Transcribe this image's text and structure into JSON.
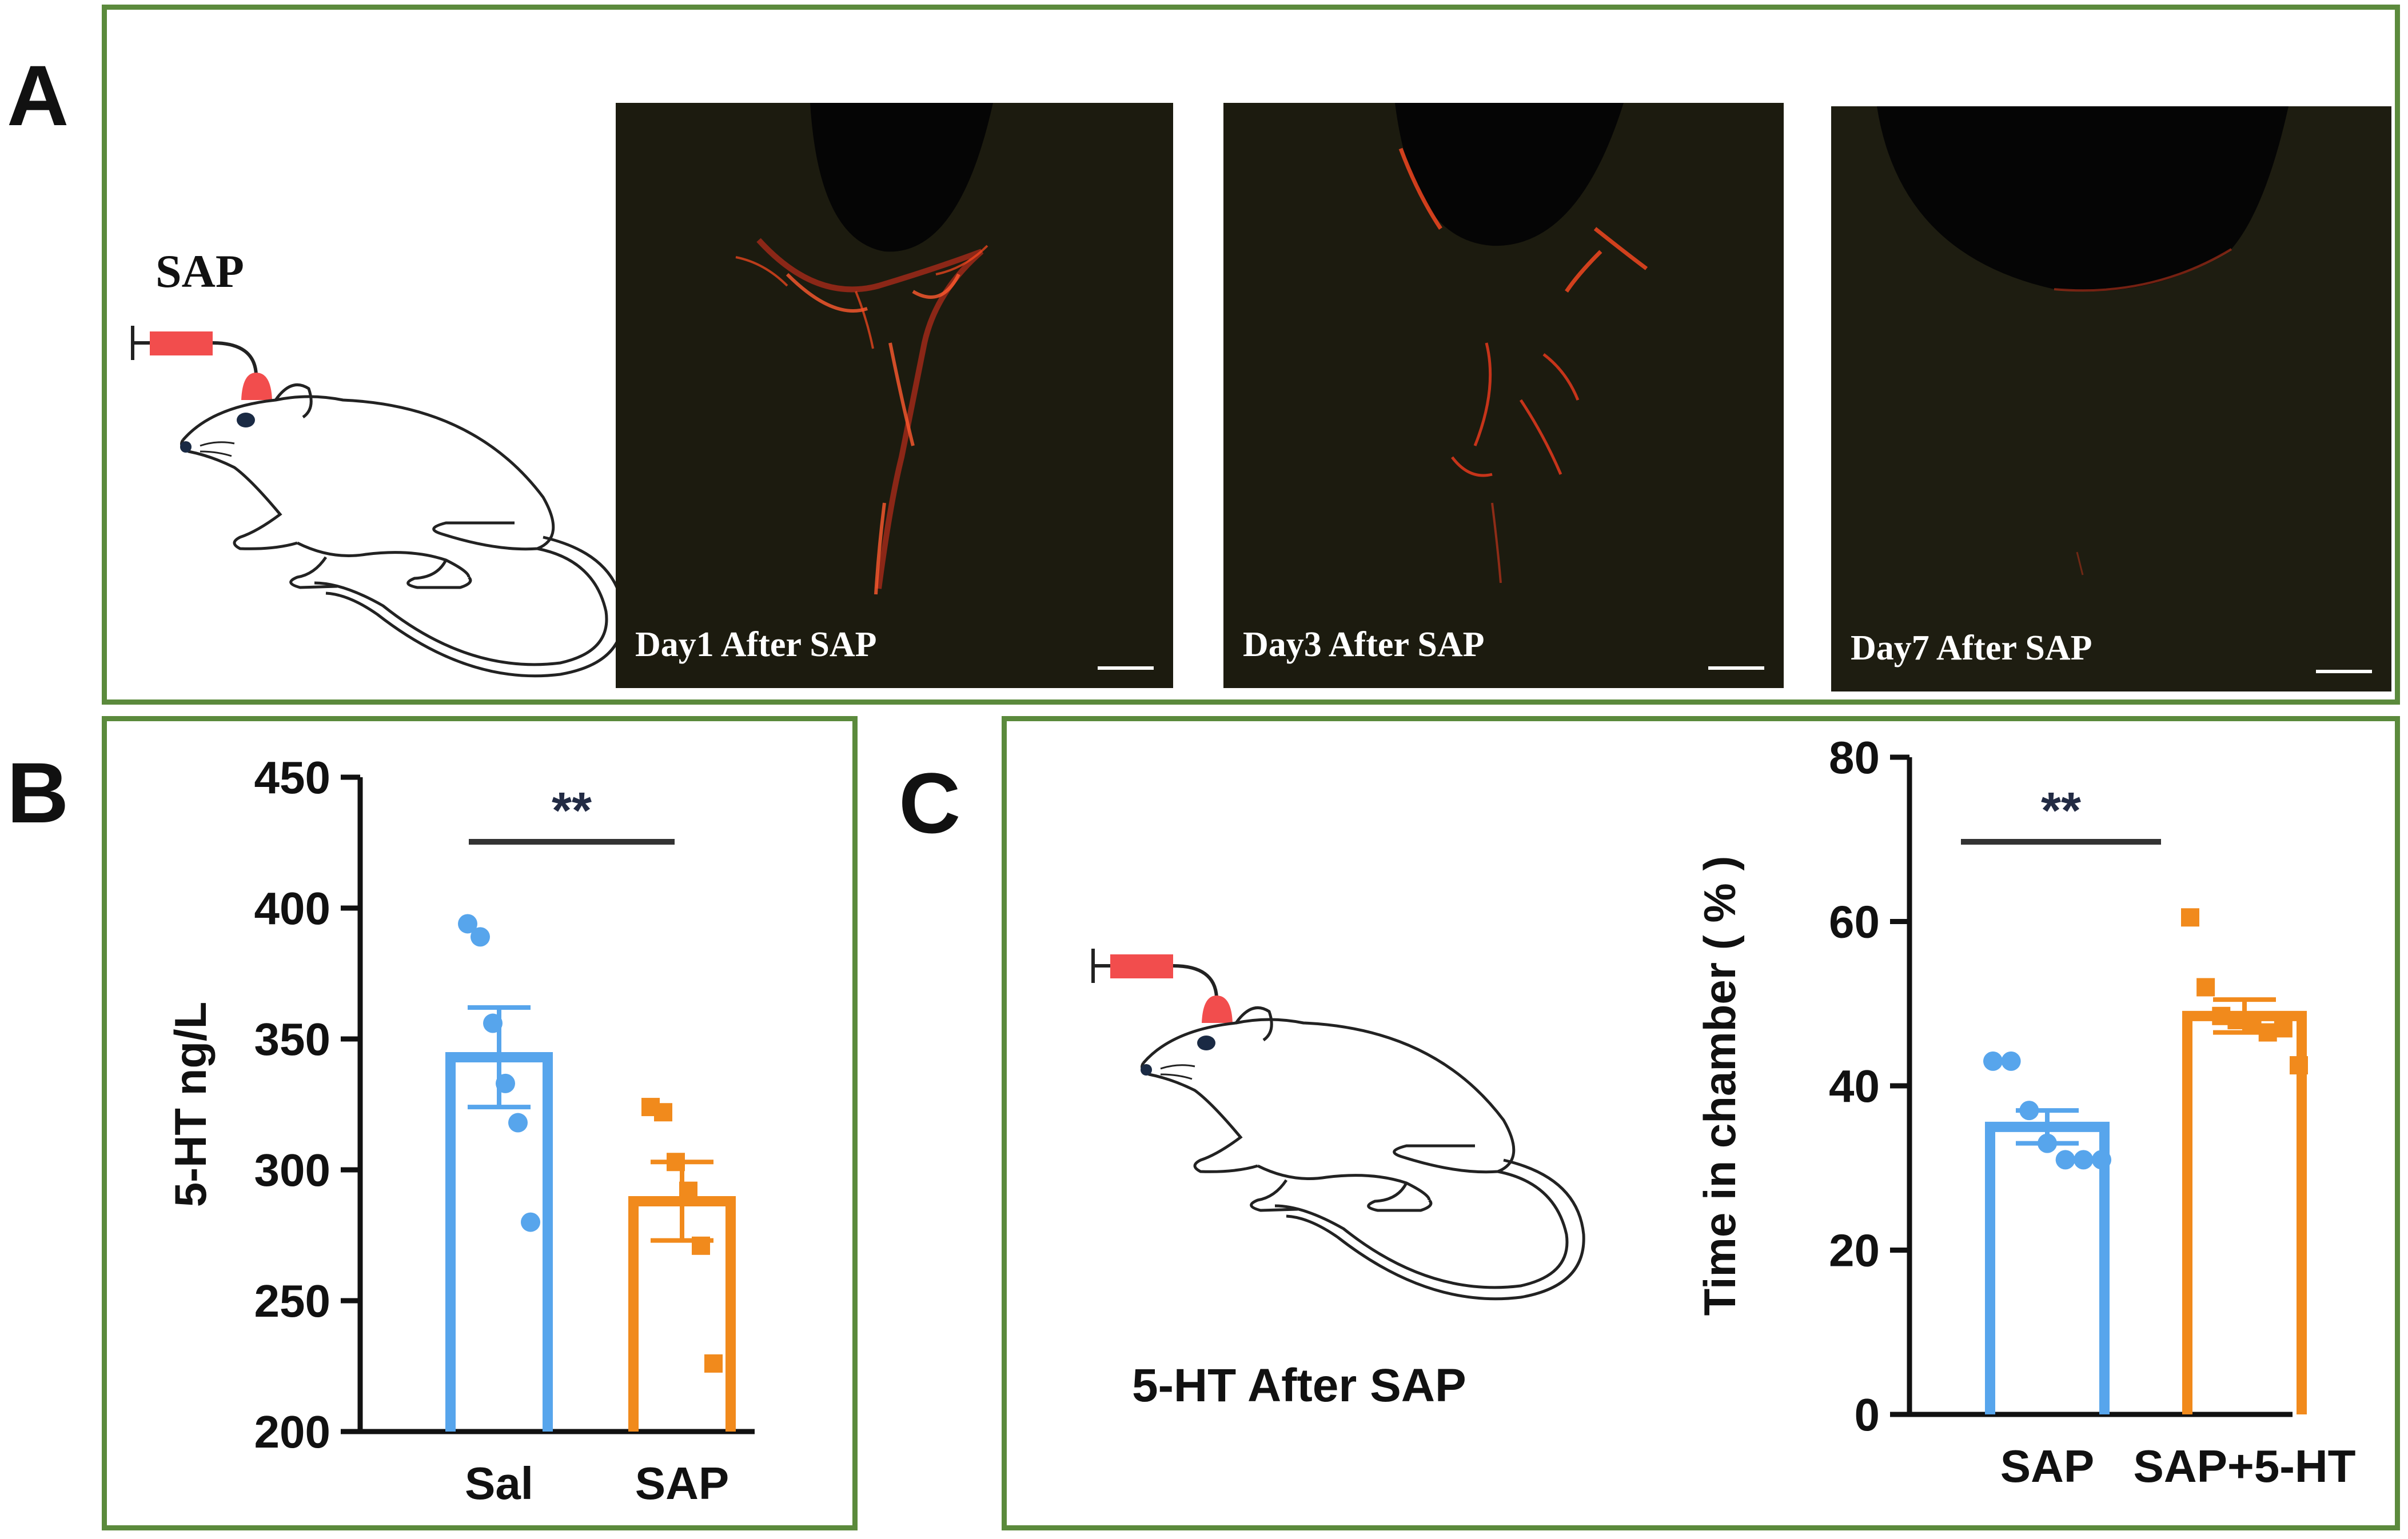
{
  "panel_a": {
    "letter": "A",
    "sap_label": "SAP",
    "captions": [
      "Day1 After SAP",
      "Day3 After SAP",
      "Day7 After SAP"
    ]
  },
  "panel_b": {
    "letter": "B"
  },
  "panel_c": {
    "letter": "C",
    "caption": "5-HT After SAP"
  },
  "colors": {
    "frame": "#5b8a3c",
    "sal": "#57a5ec",
    "sap": "#f18a1c",
    "syringe": "#f24d4d",
    "sig_bar": "#333333",
    "axis": "#111111",
    "stain": "#e8321f"
  },
  "chart_data": [
    {
      "id": "B",
      "type": "bar",
      "title": "",
      "xlabel": "",
      "ylabel": "5-HT ng/L",
      "ylim": [
        200,
        450
      ],
      "yticks": [
        200,
        250,
        300,
        350,
        400,
        450
      ],
      "categories": [
        "Sal",
        "SAP"
      ],
      "values": [
        343,
        288
      ],
      "sem": [
        19,
        15
      ],
      "points": [
        [
          394,
          389,
          356,
          333,
          318,
          280
        ],
        [
          324,
          322,
          303,
          292,
          271,
          226
        ]
      ],
      "markers": [
        "circle",
        "square"
      ],
      "significance": "**"
    },
    {
      "id": "C",
      "type": "bar",
      "title": "",
      "xlabel": "",
      "ylabel": "Time in chamber ( % )",
      "ylim": [
        0,
        80
      ],
      "yticks": [
        0,
        20,
        40,
        60,
        80
      ],
      "categories": [
        "SAP",
        "SAP+5-HT"
      ],
      "values": [
        35,
        48.5
      ],
      "sem": [
        2,
        2
      ],
      "points": [
        [
          43,
          43,
          37,
          33,
          31,
          31,
          31
        ],
        [
          60.5,
          52,
          48.5,
          48,
          47.5,
          46.5,
          47,
          42.5
        ]
      ],
      "markers": [
        "circle",
        "square"
      ],
      "significance": "**"
    }
  ]
}
